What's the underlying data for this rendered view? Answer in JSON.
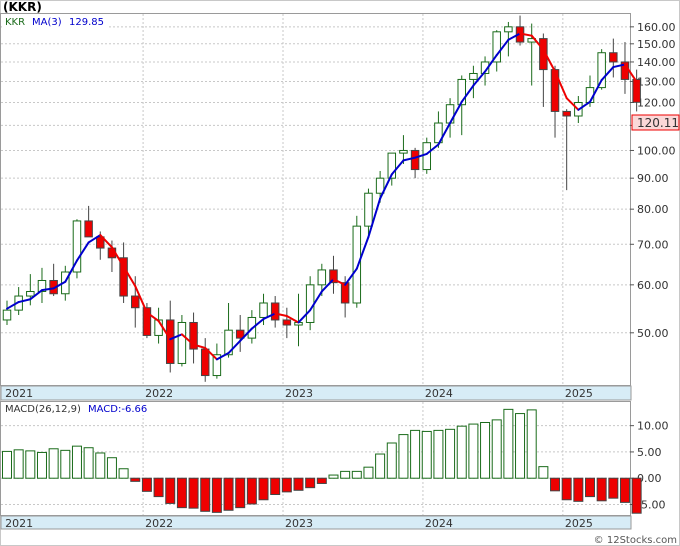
{
  "header": {
    "title": "(KKR)"
  },
  "footer": {
    "credit": "© 12Stocks.com"
  },
  "colors": {
    "up_candle": "#1a6b1a",
    "down_candle_fill": "#ee0000",
    "ma_rising": "#0000cc",
    "ma_falling": "#ee0000",
    "macd_positive": "#1a6b1a",
    "macd_negative": "#ee0000",
    "grid": "#c8c8c8",
    "axis_band": "#d7ecf6",
    "last_price_box": "#fbd8d8"
  },
  "chart_data": [
    {
      "type": "candlestick",
      "title": "",
      "symbol_label": "KKR",
      "ma_label": "MA(3)",
      "ma_value": "129.85",
      "last_price": "120.11",
      "y_scale": "log",
      "ylim": [
        41,
        168
      ],
      "y_ticks": [
        "160.00",
        "150.00",
        "140.00",
        "130.00",
        "120.00",
        "110.00",
        "100.00",
        "90.00",
        "80.00",
        "70.00",
        "60.00",
        "50.00"
      ],
      "x_labels": [
        "2021",
        "2022",
        "2023",
        "2024",
        "2025"
      ],
      "grid": true,
      "period": "monthly",
      "candles": [
        [
          52.5,
          56.5,
          51.5,
          54.5
        ],
        [
          54.5,
          59.5,
          53.5,
          57.5
        ],
        [
          57.5,
          62.5,
          55.5,
          58.5
        ],
        [
          58.5,
          64,
          56,
          61
        ],
        [
          61,
          65,
          57.5,
          58
        ],
        [
          58,
          64.5,
          56.5,
          63
        ],
        [
          63,
          77,
          61.5,
          76.5
        ],
        [
          76.5,
          81,
          72,
          72
        ],
        [
          72,
          73.5,
          66,
          69
        ],
        [
          69,
          71,
          63,
          66.5
        ],
        [
          66.5,
          70.5,
          56,
          57.5
        ],
        [
          57.5,
          62,
          51,
          55
        ],
        [
          55,
          56,
          49,
          49.5
        ],
        [
          49.5,
          55,
          48,
          52.5
        ],
        [
          52.5,
          56.5,
          43,
          44.5
        ],
        [
          44.5,
          53.5,
          44,
          52
        ],
        [
          52,
          54,
          44.5,
          47
        ],
        [
          47,
          49,
          41.5,
          42.5
        ],
        [
          42.5,
          48,
          42,
          46
        ],
        [
          46,
          56,
          45.5,
          50.5
        ],
        [
          50.5,
          53.5,
          46.5,
          49
        ],
        [
          49,
          54.5,
          48,
          53
        ],
        [
          53,
          58,
          51.5,
          56
        ],
        [
          56,
          57.5,
          51,
          52.5
        ],
        [
          52.5,
          55,
          49,
          51.5
        ],
        [
          51.5,
          58,
          47.5,
          52
        ],
        [
          52,
          62,
          50.5,
          60
        ],
        [
          60,
          65,
          57.5,
          63.5
        ],
        [
          63.5,
          67,
          58,
          60.5
        ],
        [
          60.5,
          62,
          53,
          56
        ],
        [
          56,
          78,
          55,
          75
        ],
        [
          75,
          86.5,
          72,
          85
        ],
        [
          85,
          92.5,
          82,
          90
        ],
        [
          90,
          99,
          87.5,
          99
        ],
        [
          99,
          106,
          95,
          100
        ],
        [
          100,
          101,
          90,
          93
        ],
        [
          93,
          105,
          91.5,
          103
        ],
        [
          103,
          116,
          101,
          111
        ],
        [
          111,
          122,
          105,
          119
        ],
        [
          119,
          133,
          106,
          131
        ],
        [
          131,
          138,
          122,
          134
        ],
        [
          134,
          143,
          128,
          140
        ],
        [
          140,
          158,
          135,
          157
        ],
        [
          157,
          163,
          143,
          160
        ],
        [
          160,
          167,
          149,
          151
        ],
        [
          151,
          162,
          128,
          153
        ],
        [
          153,
          156,
          118,
          136
        ],
        [
          136,
          138,
          105,
          116
        ],
        [
          116,
          117,
          86,
          114
        ],
        [
          114,
          123,
          111,
          120
        ],
        [
          120,
          133,
          118,
          127
        ],
        [
          127,
          147,
          126,
          145
        ],
        [
          145,
          153,
          132,
          140
        ],
        [
          140,
          151,
          124,
          131
        ],
        [
          131,
          136,
          116,
          120.1
        ]
      ],
      "ma": [
        54.8,
        56.2,
        56.8,
        58.8,
        59.2,
        60.7,
        65.8,
        70.5,
        72.5,
        69.2,
        64.3,
        59.7,
        54,
        52.3,
        48.8,
        49.7,
        47.8,
        47.2,
        45.2,
        46.3,
        48.5,
        50.8,
        52.7,
        53.8,
        53.3,
        52,
        54.5,
        58.5,
        61.3,
        60,
        63.8,
        72,
        83.3,
        91.3,
        96.3,
        97.3,
        98.7,
        102.3,
        111,
        120.3,
        128,
        135,
        143.7,
        152.3,
        156,
        154.7,
        146.7,
        135,
        122,
        116.7,
        120.3,
        130.7,
        137.3,
        138.7,
        129.85
      ]
    },
    {
      "type": "bar",
      "title": "",
      "indicator_label": "MACD(26,12,9)",
      "value_label": "MACD:-6.66",
      "ylim": [
        -7,
        14.5
      ],
      "y_ticks": [
        "10.00",
        "5.00",
        "0.00",
        "-5.00"
      ],
      "x_labels": [
        "2021",
        "2022",
        "2023",
        "2024",
        "2025"
      ],
      "values": [
        5.1,
        5.4,
        5.2,
        4.9,
        5.6,
        5.3,
        6.1,
        5.8,
        4.8,
        3.9,
        1.8,
        -0.6,
        -2.5,
        -3.5,
        -4.8,
        -5.6,
        -5.7,
        -6.3,
        -6.5,
        -6.1,
        -5.6,
        -4.9,
        -4.1,
        -3.1,
        -2.6,
        -2.3,
        -1.8,
        -1.0,
        0.6,
        1.3,
        1.3,
        2.1,
        4.6,
        6.7,
        8.3,
        9.1,
        8.9,
        9.1,
        9.3,
        9.9,
        10.3,
        10.6,
        11.1,
        13.1,
        12.3,
        13.0,
        2.2,
        -2.4,
        -4.1,
        -4.4,
        -3.5,
        -4.3,
        -3.8,
        -4.6,
        -6.66
      ]
    }
  ]
}
